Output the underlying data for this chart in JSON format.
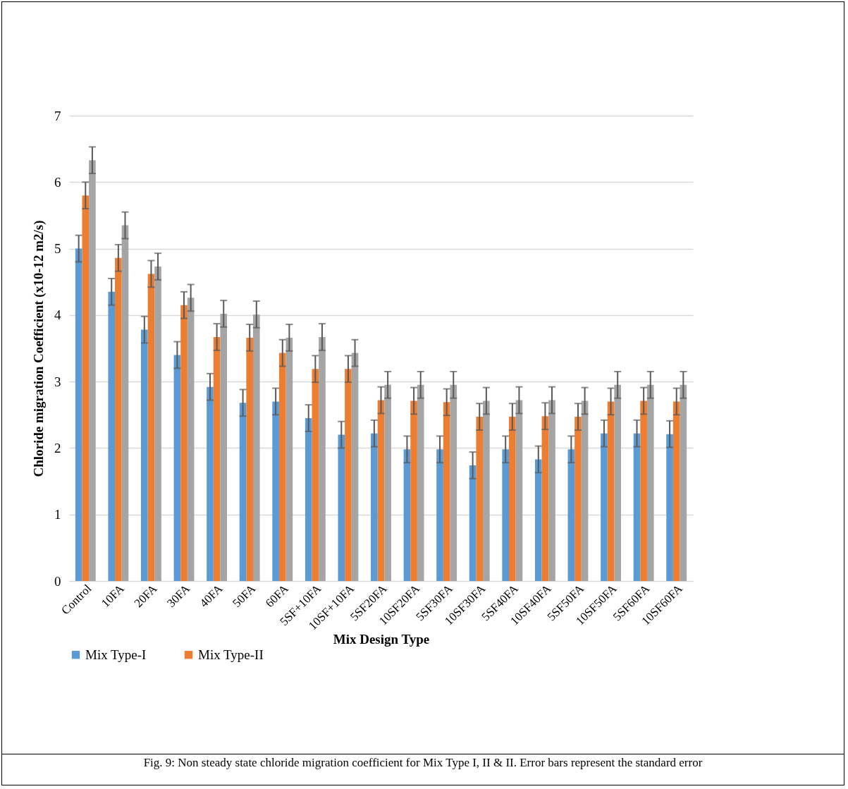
{
  "chart_data": {
    "type": "bar",
    "xlabel": "Mix Design Type",
    "ylabel": "Chloride migration Coefficient  (x10-12 m2/s)",
    "categories": [
      "Control",
      "10FA",
      "20FA",
      "30FA",
      "40FA",
      "50FA",
      "60FA",
      "5SF+10FA",
      "10SF+10FA",
      "5SF20FA",
      "10SF20FA",
      "5SF30FA",
      "10SF30FA",
      "5SF40FA",
      "10SF40FA",
      "5SF50FA",
      "10SF50FA",
      "5SF60FA",
      "10SF60FA"
    ],
    "series": [
      {
        "name": "Mix Type-I",
        "color": "#5b9bd5",
        "values": [
          5.0,
          4.35,
          3.78,
          3.4,
          2.92,
          2.68,
          2.7,
          2.45,
          2.2,
          2.22,
          1.98,
          1.98,
          1.74,
          1.98,
          1.83,
          1.98,
          2.22,
          2.22,
          2.21
        ],
        "errors": [
          0.2,
          0.2,
          0.2,
          0.2,
          0.2,
          0.2,
          0.2,
          0.2,
          0.2,
          0.2,
          0.2,
          0.2,
          0.2,
          0.2,
          0.2,
          0.2,
          0.2,
          0.2,
          0.2
        ]
      },
      {
        "name": "Mix Type-II",
        "color": "#ed7d31",
        "values": [
          5.8,
          4.86,
          4.62,
          4.15,
          3.67,
          3.66,
          3.43,
          3.19,
          3.19,
          2.72,
          2.71,
          2.69,
          2.47,
          2.47,
          2.48,
          2.47,
          2.7,
          2.71,
          2.7
        ],
        "errors": [
          0.2,
          0.2,
          0.2,
          0.2,
          0.2,
          0.2,
          0.2,
          0.2,
          0.2,
          0.2,
          0.2,
          0.2,
          0.2,
          0.2,
          0.2,
          0.2,
          0.2,
          0.2,
          0.2
        ]
      },
      {
        "color": "#a5a5a5",
        "values": [
          6.33,
          5.35,
          4.73,
          4.26,
          4.02,
          4.01,
          3.66,
          3.67,
          3.43,
          2.95,
          2.95,
          2.95,
          2.71,
          2.72,
          2.72,
          2.71,
          2.95,
          2.95,
          2.95
        ],
        "errors": [
          0.2,
          0.2,
          0.2,
          0.2,
          0.2,
          0.2,
          0.2,
          0.2,
          0.2,
          0.2,
          0.2,
          0.2,
          0.2,
          0.2,
          0.2,
          0.2,
          0.2,
          0.2,
          0.2
        ]
      }
    ],
    "ylim": [
      0,
      7
    ],
    "yticks": [
      0,
      1,
      2,
      3,
      4,
      5,
      6,
      7
    ],
    "grid": "y",
    "legend": "bottom",
    "annotations": [
      "Fig. 9: Non steady state chloride migration coefficient for Mix Type I, II & II. Error bars represent the standard error"
    ]
  }
}
